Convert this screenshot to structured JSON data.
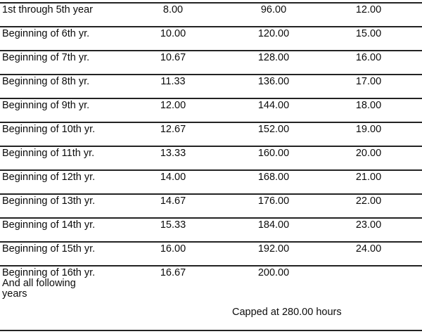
{
  "table": {
    "rows": [
      {
        "label": "1st through 5th year",
        "col2": "8.00",
        "col3": "96.00",
        "col4": "12.00"
      },
      {
        "label": "Beginning of 6th yr.",
        "col2": "10.00",
        "col3": "120.00",
        "col4": "15.00"
      },
      {
        "label": "Beginning of 7th yr.",
        "col2": "10.67",
        "col3": "128.00",
        "col4": "16.00"
      },
      {
        "label": "Beginning of 8th yr.",
        "col2": "11.33",
        "col3": "136.00",
        "col4": "17.00"
      },
      {
        "label": "Beginning of 9th yr.",
        "col2": "12.00",
        "col3": "144.00",
        "col4": "18.00"
      },
      {
        "label": "Beginning of 10th yr.",
        "col2": "12.67",
        "col3": "152.00",
        "col4": "19.00"
      },
      {
        "label": "Beginning of 11th yr.",
        "col2": "13.33",
        "col3": "160.00",
        "col4": "20.00"
      },
      {
        "label": "Beginning of 12th yr.",
        "col2": "14.00",
        "col3": "168.00",
        "col4": "21.00"
      },
      {
        "label": "Beginning of 13th yr.",
        "col2": "14.67",
        "col3": "176.00",
        "col4": "22.00"
      },
      {
        "label": "Beginning of 14th yr.",
        "col2": "15.33",
        "col3": "184.00",
        "col4": "23.00"
      },
      {
        "label": "Beginning of 15th yr.",
        "col2": "16.00",
        "col3": "192.00",
        "col4": "24.00"
      },
      {
        "label_lines": [
          "Beginning of 16th yr.",
          "And all following",
          "years"
        ],
        "col2": "16.67",
        "col3": "200.00",
        "col4": ""
      }
    ],
    "capped_note": "Capped at 280.00 hours",
    "line_color": "#232323",
    "text_color": "#0c0c0c"
  }
}
